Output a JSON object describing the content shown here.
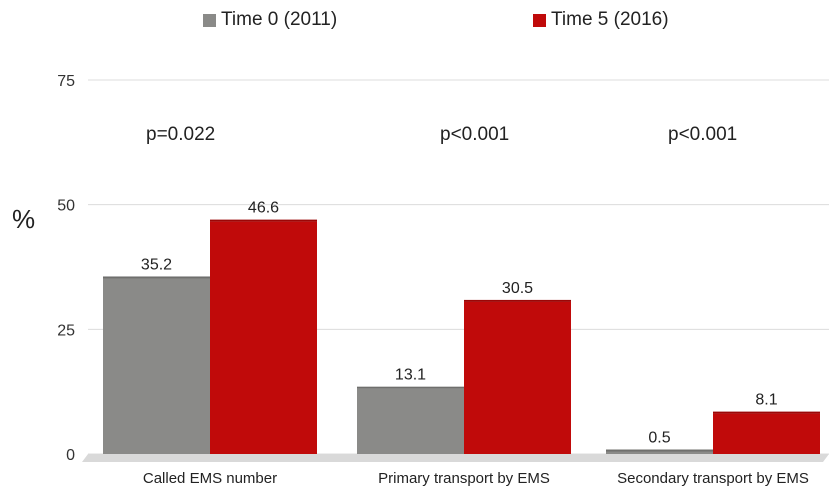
{
  "chart_data": {
    "type": "bar",
    "categories": [
      "Called EMS number",
      "Primary transport by EMS",
      "Secondary transport by EMS"
    ],
    "series": [
      {
        "name": "Time 0 (2011)",
        "values": [
          35.2,
          13.1,
          0.5
        ],
        "color": "#8a8a88"
      },
      {
        "name": "Time 5 (2016)",
        "values": [
          46.6,
          30.5,
          8.1
        ],
        "color": "#c00a0a"
      }
    ],
    "p_values": [
      "p=0.022",
      "p<0.001",
      "p<0.001"
    ],
    "ylabel": "%",
    "ylim": [
      0,
      75
    ],
    "yticks": [
      "0",
      "25",
      "50",
      "75"
    ],
    "grid": true,
    "legend_position": "top"
  }
}
